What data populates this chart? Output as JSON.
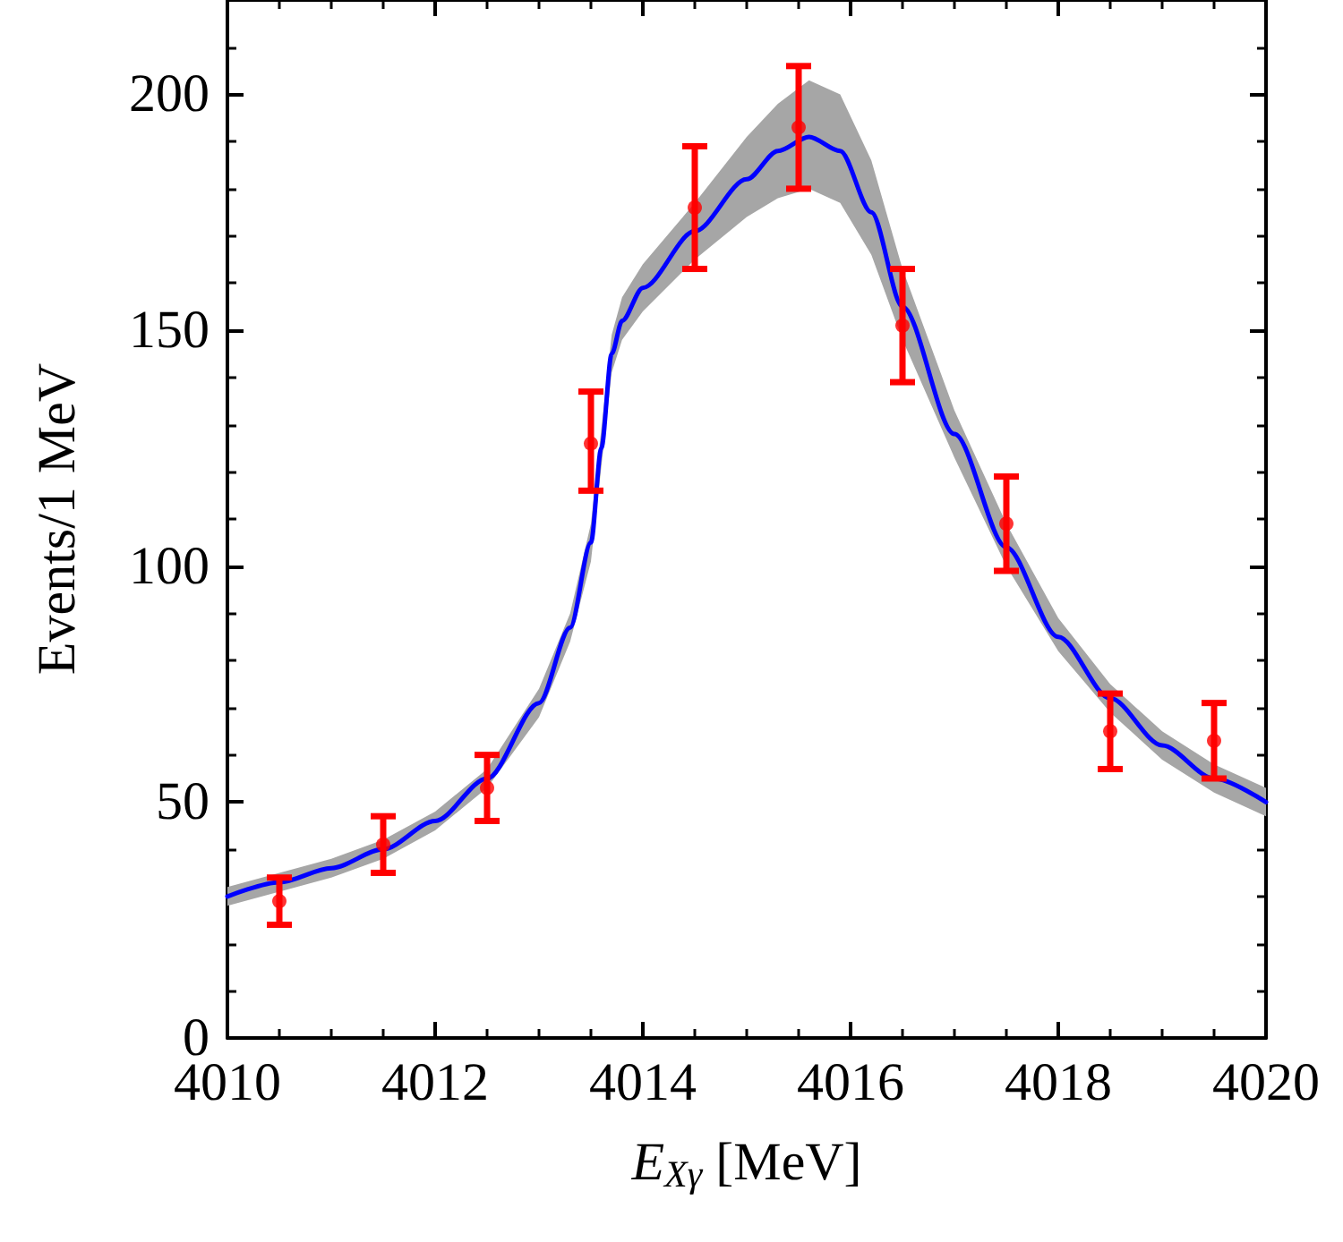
{
  "chart_data": {
    "type": "scatter",
    "xlabel": "E$_{Xγ}$ [MeV]",
    "ylabel": "Events/1 MeV",
    "xlim": [
      4010,
      4020
    ],
    "xticks": [
      4010,
      4012,
      4014,
      4016,
      4018,
      4020
    ],
    "ylim": [
      0,
      220
    ],
    "yticks": [
      0,
      50,
      100,
      150,
      200
    ],
    "grid": false,
    "series": [
      {
        "type": "line",
        "color": "#0000ff",
        "marker": "none",
        "line_style": "solid",
        "x": [
          4010,
          4010.5,
          4011,
          4011.5,
          4012,
          4012.5,
          4013,
          4013.3,
          4013.5,
          4013.6,
          4013.7,
          4013.8,
          4014,
          4014.5,
          4015,
          4015.3,
          4015.6,
          4015.9,
          4016.2,
          4016.5,
          4017,
          4017.5,
          4018,
          4018.5,
          4019,
          4019.5,
          4020
        ],
        "values": [
          30,
          33,
          36,
          40,
          46,
          55,
          71,
          87,
          105,
          125,
          145,
          152,
          159,
          171,
          182,
          188,
          191,
          188,
          175,
          155,
          128,
          104,
          85,
          72,
          62,
          55,
          50
        ],
        "lower": [
          28,
          31,
          34,
          38,
          44,
          53,
          68,
          84,
          101,
          121,
          141,
          148,
          154,
          165,
          174,
          178,
          180,
          177,
          166,
          148,
          123,
          100,
          82,
          69,
          59,
          52,
          47
        ],
        "upper": [
          32,
          35,
          38,
          42,
          48,
          57,
          74,
          90,
          109,
          129,
          149,
          157,
          164,
          177,
          191,
          198,
          203,
          200,
          186,
          163,
          133,
          109,
          89,
          75,
          65,
          58,
          53
        ]
      },
      {
        "color": "#ff0000",
        "marker": "circle",
        "x": [
          4010.5,
          4011.5,
          4012.5,
          4013.5,
          4014.5,
          4015.5,
          4016.5,
          4017.5,
          4018.5,
          4019.5
        ],
        "values": [
          29,
          41,
          53,
          126,
          176,
          193,
          151,
          109,
          65,
          63
        ],
        "errors": [
          [
            24,
            34
          ],
          [
            35,
            47
          ],
          [
            46,
            60
          ],
          [
            116,
            137
          ],
          [
            163,
            189
          ],
          [
            180,
            206
          ],
          [
            139,
            163
          ],
          [
            99,
            119
          ],
          [
            57,
            73
          ],
          [
            55,
            71
          ]
        ]
      }
    ]
  }
}
